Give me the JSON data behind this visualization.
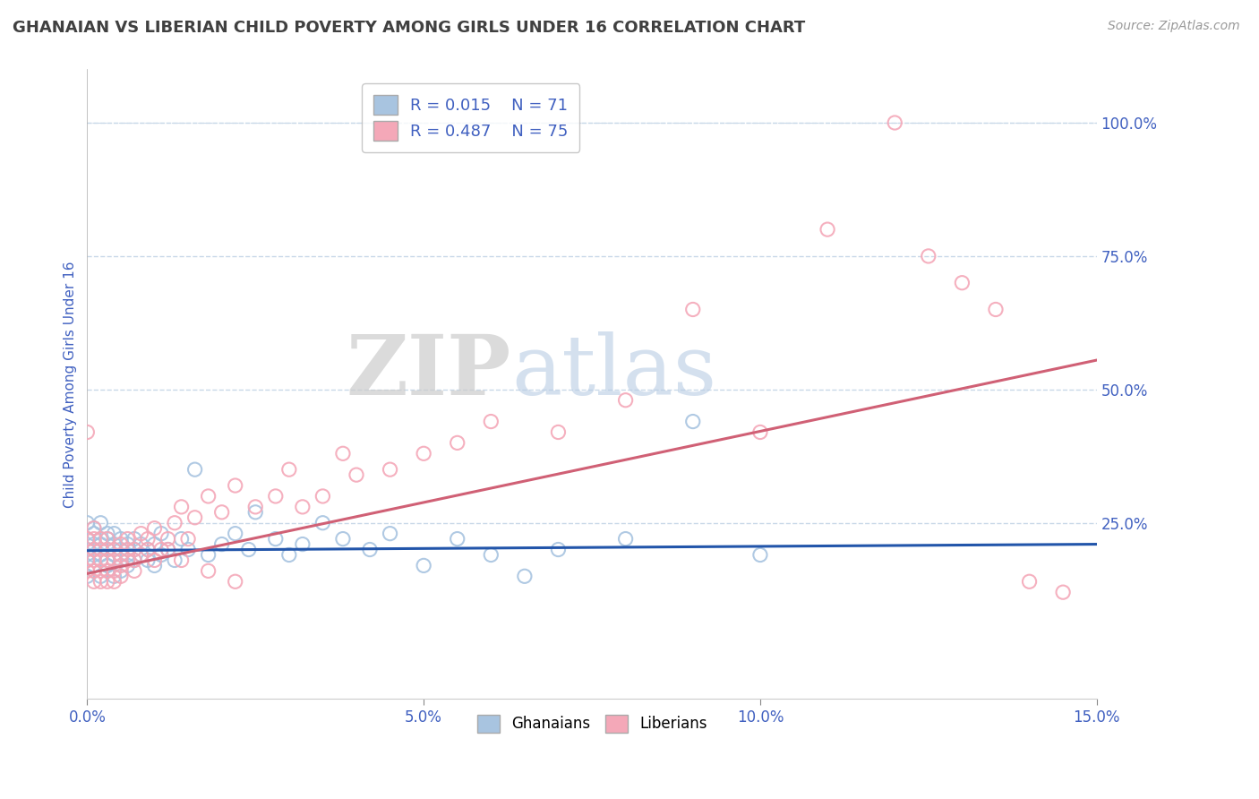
{
  "title": "GHANAIAN VS LIBERIAN CHILD POVERTY AMONG GIRLS UNDER 16 CORRELATION CHART",
  "source": "Source: ZipAtlas.com",
  "ylabel": "Child Poverty Among Girls Under 16",
  "xlim": [
    0.0,
    0.15
  ],
  "ylim": [
    -0.08,
    1.1
  ],
  "xticks": [
    0.0,
    0.05,
    0.1,
    0.15
  ],
  "xtick_labels": [
    "0.0%",
    "5.0%",
    "10.0%",
    "15.0%"
  ],
  "ytick_right_vals": [
    0.25,
    0.5,
    0.75,
    1.0
  ],
  "ytick_right_labels": [
    "25.0%",
    "50.0%",
    "75.0%",
    "100.0%"
  ],
  "legend_r1": "R = 0.015",
  "legend_n1": "N = 71",
  "legend_r2": "R = 0.487",
  "legend_n2": "N = 75",
  "ghanaian_color": "#a8c4e0",
  "liberian_color": "#f4a8b8",
  "ghanaian_line_color": "#2255aa",
  "liberian_line_color": "#d06075",
  "watermark_zip": "ZIP",
  "watermark_atlas": "atlas",
  "background_color": "#ffffff",
  "grid_color": "#c8d8e8",
  "title_color": "#404040",
  "axis_label_color": "#4060c0",
  "ghanaian_scatter_x": [
    0.0,
    0.0,
    0.0,
    0.0,
    0.0,
    0.001,
    0.001,
    0.001,
    0.001,
    0.001,
    0.001,
    0.001,
    0.002,
    0.002,
    0.002,
    0.002,
    0.002,
    0.002,
    0.003,
    0.003,
    0.003,
    0.003,
    0.003,
    0.003,
    0.004,
    0.004,
    0.004,
    0.004,
    0.005,
    0.005,
    0.005,
    0.005,
    0.006,
    0.006,
    0.006,
    0.007,
    0.007,
    0.007,
    0.008,
    0.008,
    0.009,
    0.009,
    0.01,
    0.01,
    0.011,
    0.011,
    0.012,
    0.013,
    0.014,
    0.015,
    0.016,
    0.018,
    0.02,
    0.022,
    0.024,
    0.025,
    0.028,
    0.03,
    0.032,
    0.035,
    0.038,
    0.042,
    0.045,
    0.05,
    0.055,
    0.06,
    0.065,
    0.07,
    0.08,
    0.09,
    0.1
  ],
  "ghanaian_scatter_y": [
    0.2,
    0.18,
    0.22,
    0.15,
    0.25,
    0.19,
    0.21,
    0.17,
    0.23,
    0.16,
    0.24,
    0.2,
    0.18,
    0.22,
    0.15,
    0.25,
    0.19,
    0.21,
    0.17,
    0.23,
    0.16,
    0.2,
    0.18,
    0.22,
    0.19,
    0.21,
    0.15,
    0.23,
    0.18,
    0.2,
    0.22,
    0.16,
    0.19,
    0.21,
    0.17,
    0.18,
    0.2,
    0.22,
    0.19,
    0.21,
    0.18,
    0.2,
    0.17,
    0.21,
    0.19,
    0.23,
    0.2,
    0.18,
    0.22,
    0.2,
    0.35,
    0.19,
    0.21,
    0.23,
    0.2,
    0.27,
    0.22,
    0.19,
    0.21,
    0.25,
    0.22,
    0.2,
    0.23,
    0.17,
    0.22,
    0.19,
    0.15,
    0.2,
    0.22,
    0.44,
    0.19
  ],
  "liberian_scatter_x": [
    0.0,
    0.0,
    0.0,
    0.0,
    0.001,
    0.001,
    0.001,
    0.001,
    0.001,
    0.001,
    0.002,
    0.002,
    0.002,
    0.002,
    0.002,
    0.003,
    0.003,
    0.003,
    0.003,
    0.003,
    0.004,
    0.004,
    0.004,
    0.004,
    0.005,
    0.005,
    0.005,
    0.005,
    0.006,
    0.006,
    0.006,
    0.007,
    0.007,
    0.007,
    0.008,
    0.008,
    0.009,
    0.009,
    0.01,
    0.01,
    0.011,
    0.012,
    0.013,
    0.014,
    0.015,
    0.016,
    0.018,
    0.02,
    0.022,
    0.025,
    0.028,
    0.03,
    0.032,
    0.035,
    0.038,
    0.04,
    0.045,
    0.05,
    0.055,
    0.06,
    0.07,
    0.08,
    0.09,
    0.1,
    0.11,
    0.12,
    0.125,
    0.13,
    0.135,
    0.14,
    0.145,
    0.012,
    0.014,
    0.018,
    0.022
  ],
  "liberian_scatter_y": [
    0.42,
    0.22,
    0.18,
    0.16,
    0.2,
    0.18,
    0.14,
    0.22,
    0.16,
    0.24,
    0.18,
    0.14,
    0.2,
    0.16,
    0.22,
    0.18,
    0.14,
    0.2,
    0.16,
    0.22,
    0.18,
    0.14,
    0.2,
    0.16,
    0.15,
    0.19,
    0.17,
    0.21,
    0.18,
    0.2,
    0.22,
    0.16,
    0.2,
    0.18,
    0.19,
    0.23,
    0.2,
    0.22,
    0.18,
    0.24,
    0.2,
    0.22,
    0.25,
    0.28,
    0.22,
    0.26,
    0.3,
    0.27,
    0.32,
    0.28,
    0.3,
    0.35,
    0.28,
    0.3,
    0.38,
    0.34,
    0.35,
    0.38,
    0.4,
    0.44,
    0.42,
    0.48,
    0.65,
    0.42,
    0.8,
    1.0,
    0.75,
    0.7,
    0.65,
    0.14,
    0.12,
    0.2,
    0.18,
    0.16,
    0.14
  ],
  "ghanaian_trend_x": [
    0.0,
    0.15
  ],
  "ghanaian_trend_y": [
    0.198,
    0.21
  ],
  "liberian_trend_x": [
    0.0,
    0.15
  ],
  "liberian_trend_y": [
    0.155,
    0.555
  ]
}
